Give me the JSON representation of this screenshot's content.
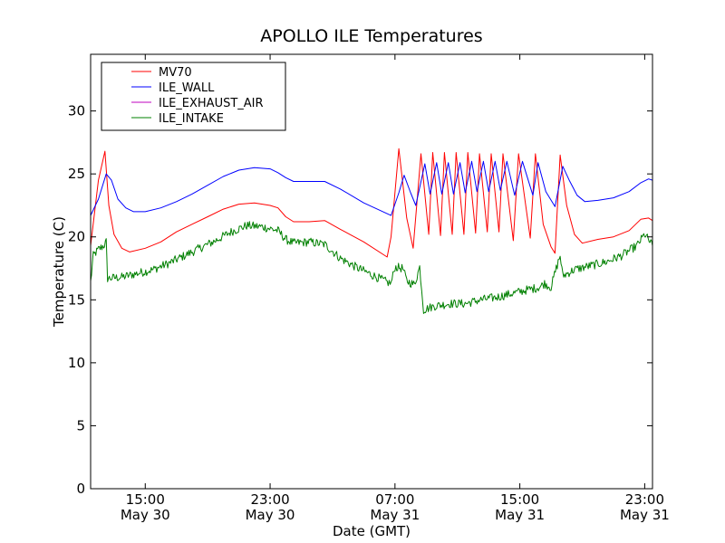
{
  "chart_data": {
    "type": "line",
    "title": "APOLLO ILE Temperatures",
    "xlabel": "Date (GMT)",
    "ylabel": "Temperature (C)",
    "xlim": [
      "2014-05-30T11:30",
      "2014-05-31T23:30"
    ],
    "ylim": [
      0,
      34.5
    ],
    "yticks": [
      0,
      5,
      10,
      15,
      20,
      25,
      30
    ],
    "xticks": [
      {
        "t": "2014-05-30T15:00",
        "time": "15:00",
        "date": "May 30"
      },
      {
        "t": "2014-05-30T23:00",
        "time": "23:00",
        "date": "May 30"
      },
      {
        "t": "2014-05-31T07:00",
        "time": "07:00",
        "date": "May 31"
      },
      {
        "t": "2014-05-31T15:00",
        "time": "15:00",
        "date": "May 31"
      },
      {
        "t": "2014-05-31T23:00",
        "time": "23:00",
        "date": "May 31"
      }
    ],
    "legend_position": "top-left",
    "grid": false,
    "series": [
      {
        "name": "MV70",
        "color": "#ff0000",
        "noise": 0,
        "points": [
          [
            "2014-05-30T11:30",
            19.3
          ],
          [
            "2014-05-30T12:00",
            24.5
          ],
          [
            "2014-05-30T12:25",
            26.8
          ],
          [
            "2014-05-30T12:40",
            22.5
          ],
          [
            "2014-05-30T13:00",
            20.2
          ],
          [
            "2014-05-30T13:30",
            19.1
          ],
          [
            "2014-05-30T14:00",
            18.8
          ],
          [
            "2014-05-30T15:00",
            19.1
          ],
          [
            "2014-05-30T16:00",
            19.6
          ],
          [
            "2014-05-30T17:00",
            20.4
          ],
          [
            "2014-05-30T18:00",
            21.0
          ],
          [
            "2014-05-30T19:00",
            21.6
          ],
          [
            "2014-05-30T20:00",
            22.2
          ],
          [
            "2014-05-30T21:00",
            22.6
          ],
          [
            "2014-05-30T22:00",
            22.7
          ],
          [
            "2014-05-30T23:00",
            22.5
          ],
          [
            "2014-05-30T23:30",
            22.3
          ],
          [
            "2014-05-31T00:00",
            21.6
          ],
          [
            "2014-05-31T00:30",
            21.2
          ],
          [
            "2014-05-31T01:30",
            21.2
          ],
          [
            "2014-05-31T02:30",
            21.3
          ],
          [
            "2014-05-31T03:30",
            20.6
          ],
          [
            "2014-05-31T05:00",
            19.6
          ],
          [
            "2014-05-31T06:30",
            18.4
          ],
          [
            "2014-05-31T06:45",
            20.0
          ],
          [
            "2014-05-31T07:15",
            27.0
          ],
          [
            "2014-05-31T07:45",
            21.5
          ],
          [
            "2014-05-31T08:10",
            19.1
          ],
          [
            "2014-05-31T08:40",
            26.6
          ],
          [
            "2014-05-31T09:10",
            20.2
          ],
          [
            "2014-05-31T09:25",
            26.7
          ],
          [
            "2014-05-31T09:55",
            20.1
          ],
          [
            "2014-05-31T10:10",
            26.7
          ],
          [
            "2014-05-31T10:40",
            20.2
          ],
          [
            "2014-05-31T10:55",
            26.7
          ],
          [
            "2014-05-31T11:25",
            20.2
          ],
          [
            "2014-05-31T11:40",
            26.7
          ],
          [
            "2014-05-31T12:10",
            20.3
          ],
          [
            "2014-05-31T12:25",
            26.6
          ],
          [
            "2014-05-31T12:55",
            20.4
          ],
          [
            "2014-05-31T13:10",
            26.6
          ],
          [
            "2014-05-31T13:40",
            20.4
          ],
          [
            "2014-05-31T13:55",
            26.6
          ],
          [
            "2014-05-31T14:35",
            19.7
          ],
          [
            "2014-05-31T14:55",
            26.6
          ],
          [
            "2014-05-31T15:40",
            19.9
          ],
          [
            "2014-05-31T16:00",
            26.6
          ],
          [
            "2014-05-31T16:30",
            21.0
          ],
          [
            "2014-05-31T17:00",
            19.2
          ],
          [
            "2014-05-31T17:15",
            18.7
          ],
          [
            "2014-05-31T17:35",
            26.5
          ],
          [
            "2014-05-31T18:00",
            22.5
          ],
          [
            "2014-05-31T18:30",
            20.2
          ],
          [
            "2014-05-31T19:00",
            19.5
          ],
          [
            "2014-05-31T20:00",
            19.8
          ],
          [
            "2014-05-31T21:00",
            20.0
          ],
          [
            "2014-05-31T22:00",
            20.5
          ],
          [
            "2014-05-31T22:45",
            21.4
          ],
          [
            "2014-05-31T23:15",
            21.5
          ],
          [
            "2014-05-31T23:30",
            21.3
          ]
        ]
      },
      {
        "name": "ILE_WALL",
        "color": "#0000ff",
        "noise": 0,
        "points": [
          [
            "2014-05-30T11:30",
            21.7
          ],
          [
            "2014-05-30T12:00",
            23.0
          ],
          [
            "2014-05-30T12:30",
            25.0
          ],
          [
            "2014-05-30T12:50",
            24.5
          ],
          [
            "2014-05-30T13:15",
            23.0
          ],
          [
            "2014-05-30T13:45",
            22.3
          ],
          [
            "2014-05-30T14:15",
            22.0
          ],
          [
            "2014-05-30T15:00",
            22.0
          ],
          [
            "2014-05-30T16:00",
            22.3
          ],
          [
            "2014-05-30T17:00",
            22.8
          ],
          [
            "2014-05-30T18:00",
            23.4
          ],
          [
            "2014-05-30T19:00",
            24.1
          ],
          [
            "2014-05-30T20:00",
            24.8
          ],
          [
            "2014-05-30T21:00",
            25.3
          ],
          [
            "2014-05-30T22:00",
            25.5
          ],
          [
            "2014-05-30T23:00",
            25.4
          ],
          [
            "2014-05-30T23:30",
            25.1
          ],
          [
            "2014-05-31T00:00",
            24.7
          ],
          [
            "2014-05-31T00:30",
            24.4
          ],
          [
            "2014-05-31T01:30",
            24.4
          ],
          [
            "2014-05-31T02:30",
            24.4
          ],
          [
            "2014-05-31T03:30",
            23.8
          ],
          [
            "2014-05-31T05:00",
            22.7
          ],
          [
            "2014-05-31T06:45",
            21.7
          ],
          [
            "2014-05-31T07:15",
            23.5
          ],
          [
            "2014-05-31T07:35",
            24.9
          ],
          [
            "2014-05-31T08:00",
            23.5
          ],
          [
            "2014-05-31T08:20",
            22.5
          ],
          [
            "2014-05-31T08:55",
            25.8
          ],
          [
            "2014-05-31T09:15",
            23.4
          ],
          [
            "2014-05-31T09:40",
            25.9
          ],
          [
            "2014-05-31T10:00",
            23.4
          ],
          [
            "2014-05-31T10:25",
            25.9
          ],
          [
            "2014-05-31T10:45",
            23.4
          ],
          [
            "2014-05-31T11:10",
            25.9
          ],
          [
            "2014-05-31T11:30",
            23.5
          ],
          [
            "2014-05-31T11:55",
            26.0
          ],
          [
            "2014-05-31T12:15",
            23.6
          ],
          [
            "2014-05-31T12:40",
            26.0
          ],
          [
            "2014-05-31T13:00",
            23.6
          ],
          [
            "2014-05-31T13:25",
            26.0
          ],
          [
            "2014-05-31T13:45",
            23.7
          ],
          [
            "2014-05-31T14:10",
            26.0
          ],
          [
            "2014-05-31T14:40",
            23.3
          ],
          [
            "2014-05-31T15:10",
            26.0
          ],
          [
            "2014-05-31T15:50",
            23.3
          ],
          [
            "2014-05-31T16:10",
            25.9
          ],
          [
            "2014-05-31T16:40",
            23.6
          ],
          [
            "2014-05-31T17:15",
            22.4
          ],
          [
            "2014-05-31T17:45",
            25.6
          ],
          [
            "2014-05-31T18:10",
            24.5
          ],
          [
            "2014-05-31T18:40",
            23.3
          ],
          [
            "2014-05-31T19:10",
            22.8
          ],
          [
            "2014-05-31T20:00",
            22.9
          ],
          [
            "2014-05-31T21:00",
            23.1
          ],
          [
            "2014-05-31T22:00",
            23.6
          ],
          [
            "2014-05-31T22:45",
            24.3
          ],
          [
            "2014-05-31T23:15",
            24.6
          ],
          [
            "2014-05-31T23:30",
            24.5
          ]
        ]
      },
      {
        "name": "ILE_EXHAUST_AIR",
        "color": "#bf00bf",
        "noise": 0,
        "points": []
      },
      {
        "name": "ILE_INTAKE",
        "color": "#008000",
        "noise": 0.35,
        "points": [
          [
            "2014-05-30T11:30",
            16.4
          ],
          [
            "2014-05-30T11:40",
            18.5
          ],
          [
            "2014-05-30T12:00",
            19.0
          ],
          [
            "2014-05-30T12:20",
            19.3
          ],
          [
            "2014-05-30T12:30",
            19.6
          ],
          [
            "2014-05-30T12:35",
            16.7
          ],
          [
            "2014-05-30T13:30",
            16.8
          ],
          [
            "2014-05-30T14:30",
            17.1
          ],
          [
            "2014-05-30T15:30",
            17.4
          ],
          [
            "2014-05-30T16:30",
            17.9
          ],
          [
            "2014-05-30T17:30",
            18.5
          ],
          [
            "2014-05-30T18:30",
            19.1
          ],
          [
            "2014-05-30T19:30",
            19.7
          ],
          [
            "2014-05-30T20:30",
            20.4
          ],
          [
            "2014-05-30T21:30",
            20.9
          ],
          [
            "2014-05-30T22:30",
            20.8
          ],
          [
            "2014-05-30T23:30",
            20.5
          ],
          [
            "2014-05-31T00:00",
            19.8
          ],
          [
            "2014-05-31T00:30",
            19.5
          ],
          [
            "2014-05-31T01:30",
            19.6
          ],
          [
            "2014-05-31T02:30",
            19.4
          ],
          [
            "2014-05-31T03:30",
            18.3
          ],
          [
            "2014-05-31T04:30",
            17.6
          ],
          [
            "2014-05-31T05:30",
            17.0
          ],
          [
            "2014-05-31T06:30",
            16.4
          ],
          [
            "2014-05-31T06:45",
            16.3
          ],
          [
            "2014-05-31T07:00",
            17.6
          ],
          [
            "2014-05-31T07:30",
            17.5
          ],
          [
            "2014-05-31T07:45",
            16.5
          ],
          [
            "2014-05-31T08:15",
            16.2
          ],
          [
            "2014-05-31T08:35",
            17.6
          ],
          [
            "2014-05-31T08:50",
            14.2
          ],
          [
            "2014-05-31T09:30",
            14.5
          ],
          [
            "2014-05-31T10:30",
            14.7
          ],
          [
            "2014-05-31T11:30",
            14.7
          ],
          [
            "2014-05-31T12:30",
            15.0
          ],
          [
            "2014-05-31T13:30",
            15.2
          ],
          [
            "2014-05-31T14:30",
            15.5
          ],
          [
            "2014-05-31T15:30",
            15.8
          ],
          [
            "2014-05-31T16:15",
            16.0
          ],
          [
            "2014-05-31T16:35",
            16.3
          ],
          [
            "2014-05-31T17:00",
            16.0
          ],
          [
            "2014-05-31T17:20",
            17.5
          ],
          [
            "2014-05-31T17:35",
            18.5
          ],
          [
            "2014-05-31T17:45",
            16.9
          ],
          [
            "2014-05-31T18:30",
            17.4
          ],
          [
            "2014-05-31T19:30",
            17.7
          ],
          [
            "2014-05-31T20:30",
            18.0
          ],
          [
            "2014-05-31T21:30",
            18.5
          ],
          [
            "2014-05-31T22:30",
            19.3
          ],
          [
            "2014-05-31T23:00",
            20.2
          ],
          [
            "2014-05-31T23:30",
            19.3
          ]
        ]
      }
    ]
  }
}
